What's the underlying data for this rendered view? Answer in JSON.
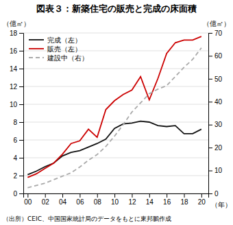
{
  "chart_data": {
    "type": "line",
    "title": "図表３：新築住宅の販売と完成の床面積",
    "y_label": "（億㎡）",
    "y2_label": "（億㎡）",
    "x_label": "（年）",
    "source": "（出所）CEIC、中国国家統計局のデータをもとに東邦鵬作成",
    "x": [
      2000,
      2001,
      2002,
      2003,
      2004,
      2005,
      2006,
      2007,
      2008,
      2009,
      2010,
      2011,
      2012,
      2013,
      2014,
      2015,
      2016,
      2017,
      2018,
      2019,
      2020
    ],
    "series": [
      {
        "name": "完成（左）",
        "color": "#111111",
        "values": [
          2.1,
          2.5,
          3.0,
          3.4,
          4.2,
          4.6,
          4.8,
          5.2,
          5.6,
          6.1,
          7.3,
          7.8,
          7.9,
          8.1,
          8.0,
          7.6,
          7.5,
          7.6,
          6.7,
          6.7,
          7.2
        ]
      },
      {
        "name": "販売（左）",
        "color": "#cc0000",
        "values": [
          1.8,
          2.2,
          2.8,
          3.4,
          4.4,
          5.6,
          5.9,
          7.2,
          6.3,
          9.4,
          10.4,
          11.1,
          11.6,
          13.1,
          10.5,
          12.9,
          15.7,
          16.9,
          17.2,
          17.2,
          17.6
        ]
      },
      {
        "name": "建設中（右）",
        "color": "#aaaaaa",
        "axis": "y2",
        "line_style": "dashed",
        "values": [
          2.5,
          3.5,
          4.5,
          6.0,
          7.5,
          9.0,
          11.5,
          14.5,
          17.0,
          20.5,
          25.0,
          30.0,
          35.5,
          39.5,
          43.5,
          45.5,
          47.0,
          51.0,
          55.0,
          58.5,
          63.5
        ]
      }
    ],
    "xlim": [
      1999.5,
      2020.8
    ],
    "xticks": [
      {
        "value": 2000,
        "label": "00"
      },
      {
        "value": 2002,
        "label": "02"
      },
      {
        "value": 2004,
        "label": "04"
      },
      {
        "value": 2006,
        "label": "06"
      },
      {
        "value": 2008,
        "label": "08"
      },
      {
        "value": 2010,
        "label": "10"
      },
      {
        "value": 2012,
        "label": "12"
      },
      {
        "value": 2014,
        "label": "14"
      },
      {
        "value": 2016,
        "label": "16"
      },
      {
        "value": 2018,
        "label": "18"
      },
      {
        "value": 2020,
        "label": "20"
      }
    ],
    "ylim": [
      0,
      18
    ],
    "yticks": [
      0,
      2,
      4,
      6,
      8,
      10,
      12,
      14,
      16,
      18
    ],
    "y2lim": [
      0,
      70
    ],
    "y2ticks": [
      0,
      10,
      20,
      30,
      40,
      50,
      60,
      70
    ],
    "grid": true,
    "legend": "upper left"
  }
}
